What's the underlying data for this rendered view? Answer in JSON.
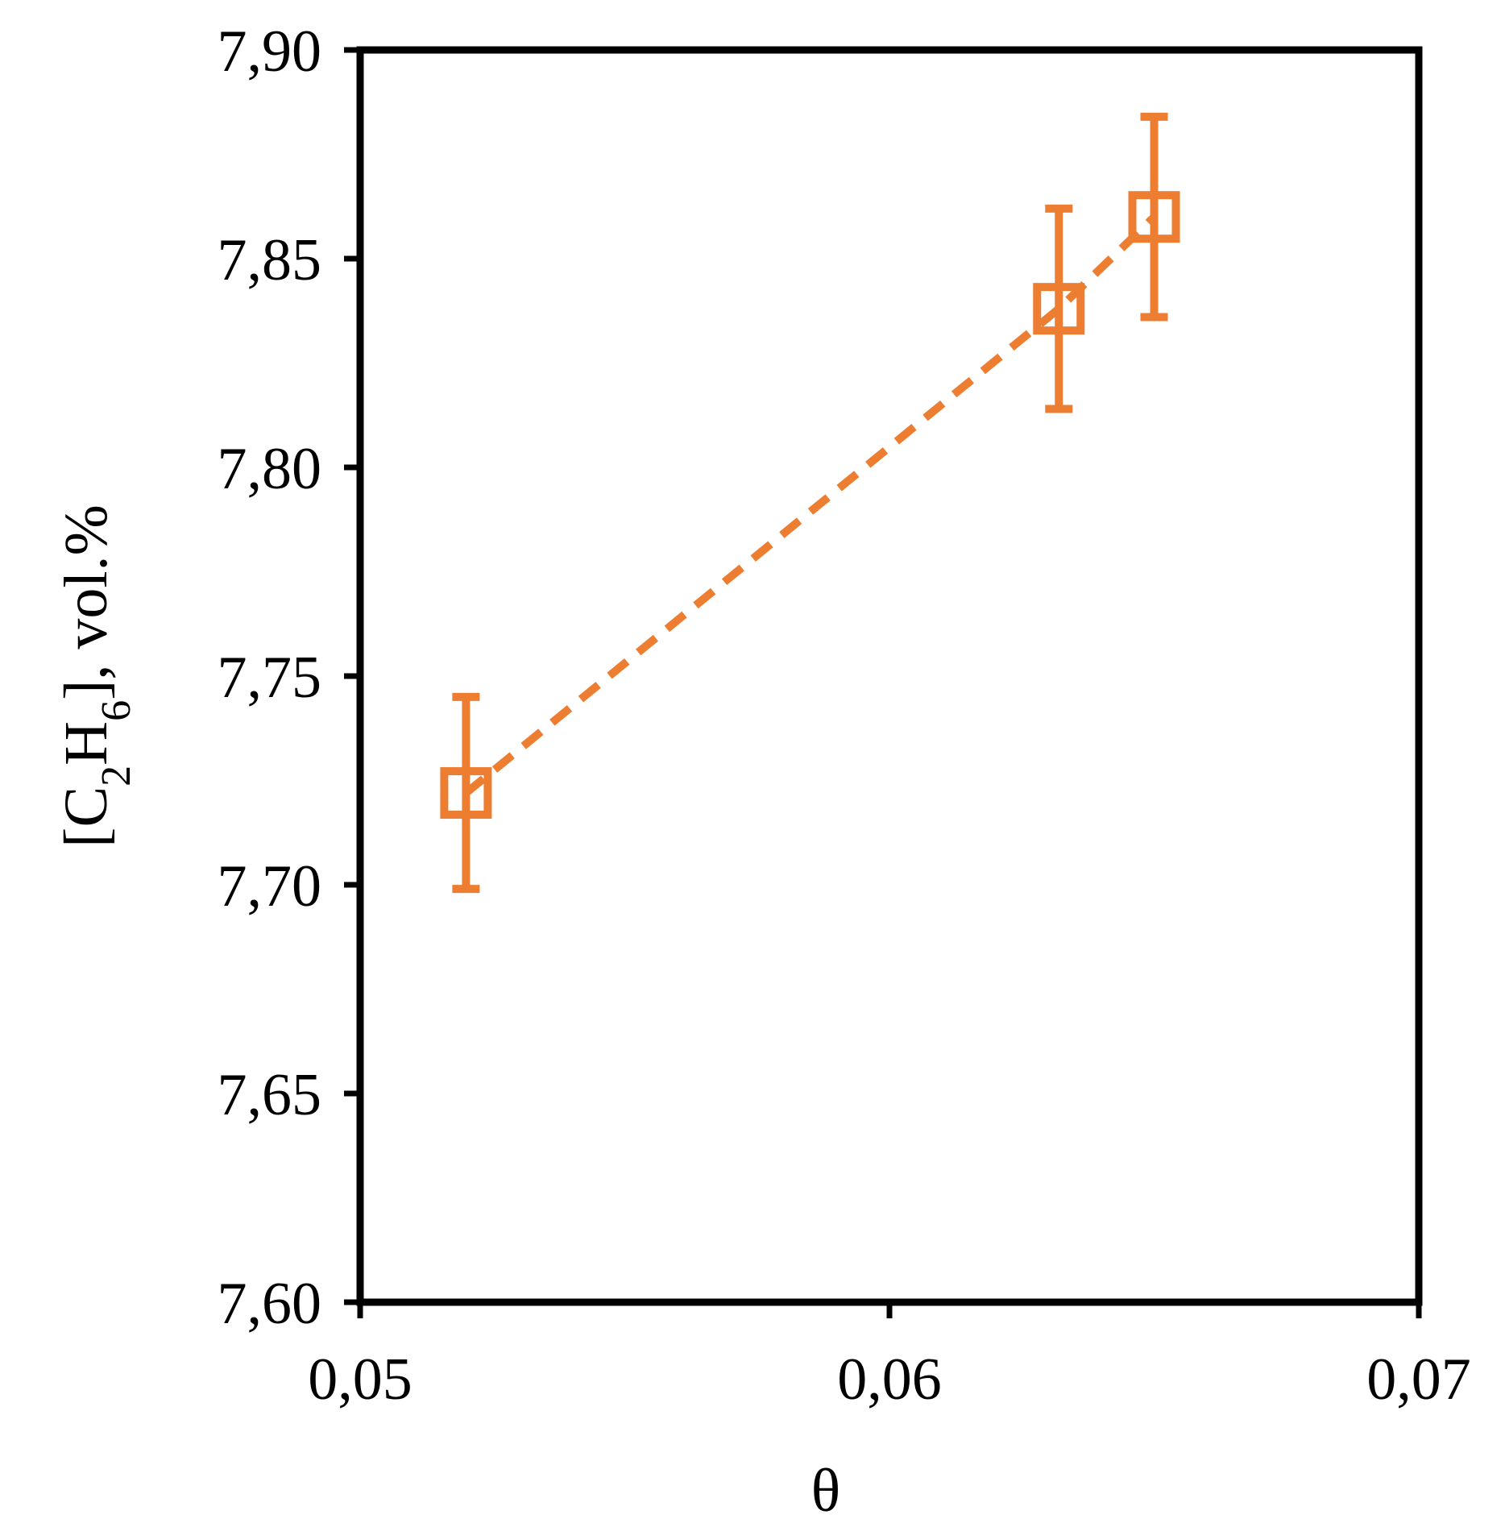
{
  "chart_data": {
    "type": "scatter",
    "xlabel": "θ",
    "ylabel": {
      "prefix": "[C",
      "sub1": "2",
      "mid": "H",
      "sub2": "6",
      "suffix": "], vol.%"
    },
    "xlim": [
      0.05,
      0.07
    ],
    "ylim": [
      7.6,
      7.9
    ],
    "x_ticks": [
      0.05,
      0.06,
      0.07
    ],
    "x_tick_labels": [
      "0,05",
      "0,06",
      "0,07"
    ],
    "y_ticks": [
      7.6,
      7.65,
      7.7,
      7.75,
      7.8,
      7.85,
      7.9
    ],
    "y_tick_labels": [
      "7,60",
      "7,65",
      "7,70",
      "7,75",
      "7,80",
      "7,85",
      "7,90"
    ],
    "grid": false,
    "series": [
      {
        "marker": "open-square",
        "line": "dashed",
        "color": "#ED7D31",
        "points": [
          {
            "x": 0.052,
            "y": 7.722,
            "err": 0.023
          },
          {
            "x": 0.0632,
            "y": 7.838,
            "err": 0.024
          },
          {
            "x": 0.065,
            "y": 7.86,
            "err": 0.024
          }
        ]
      }
    ]
  }
}
